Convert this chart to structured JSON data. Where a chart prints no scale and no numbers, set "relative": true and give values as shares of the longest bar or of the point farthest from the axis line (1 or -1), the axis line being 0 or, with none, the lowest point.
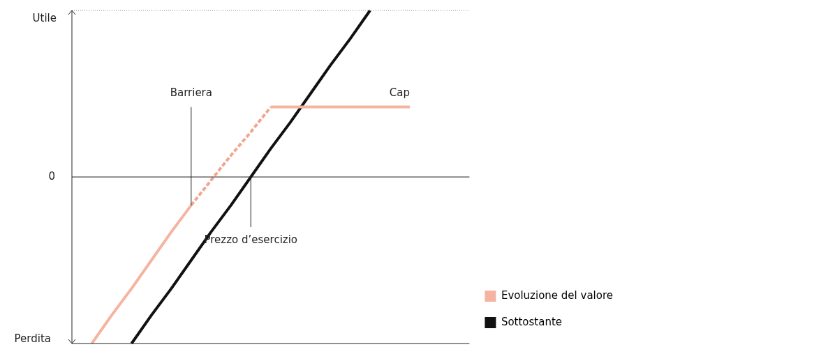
{
  "chart_data": {
    "type": "line",
    "relative": true,
    "categories": [
      null,
      null,
      null,
      null,
      null,
      null,
      null,
      null,
      null,
      null,
      null,
      null,
      null,
      null,
      null,
      null,
      null,
      null,
      null,
      null,
      null
    ],
    "series": [
      {
        "name": "Evoluzione del valore",
        "color": "#f5b4a2",
        "line_style": "solid",
        "values": [
          null,
          -1.0,
          -0.83,
          -0.67,
          -0.5,
          -0.33,
          -0.17,
          null,
          null,
          null,
          0.42,
          0.42,
          0.42,
          0.42,
          0.42,
          0.42,
          0.42,
          0.42,
          null,
          null,
          null
        ]
      },
      {
        "name": "Sottostante",
        "color": "#111111",
        "line_style": "solid",
        "values": [
          null,
          null,
          null,
          -1.0,
          -0.83,
          -0.67,
          -0.5,
          -0.33,
          -0.17,
          0,
          0.17,
          0.33,
          0.5,
          0.67,
          0.83,
          1.0,
          null,
          null,
          null,
          null,
          null
        ]
      },
      {
        "color": "#f2a690",
        "line_style": "dotted",
        "values": [
          null,
          null,
          null,
          null,
          null,
          null,
          -0.17,
          -0.02,
          0.13,
          0.27,
          0.42,
          null,
          null,
          null,
          null,
          null,
          null,
          null,
          null,
          null,
          null
        ]
      }
    ],
    "annotations": [
      "Utile",
      "0",
      "Perdita",
      "Barriera",
      "Cap",
      "Prezzo d’esercizio"
    ],
    "legend": "bottom right",
    "marker": "none"
  }
}
